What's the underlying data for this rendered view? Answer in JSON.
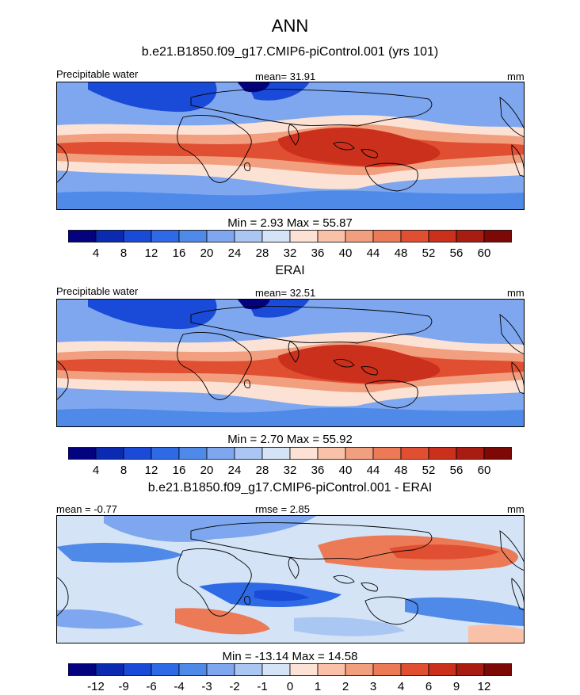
{
  "figure": {
    "title": "ANN",
    "colors": {
      "abs_palette": [
        "#03037f",
        "#0a2bb1",
        "#1a4ad8",
        "#2f6ae6",
        "#4f8ae9",
        "#7ea7ef",
        "#aac6f2",
        "#d4e4f6",
        "#fce2d4",
        "#f9c1a7",
        "#f29f7f",
        "#ec7a56",
        "#e04f32",
        "#ca301c",
        "#a81c12",
        "#7d0906"
      ],
      "diff_palette": [
        "#03037f",
        "#0a2bb1",
        "#1a4ad8",
        "#2f6ae6",
        "#4f8ae9",
        "#7ea7ef",
        "#aac6f2",
        "#d4e4f6",
        "#fce2d4",
        "#f9c1a7",
        "#f29f7f",
        "#ec7a56",
        "#e04f32",
        "#ca301c",
        "#a81c12",
        "#7d0906"
      ],
      "land": "#000000"
    }
  },
  "chart_data": [
    {
      "type": "heatmap",
      "title": "b.e21.B1850.f09_g17.CMIP6-piControl.001 (yrs 101)",
      "left_label": "Precipitable water",
      "center_label": "mean=  31.91",
      "right_label": "mm",
      "mean": 31.91,
      "min": 2.93,
      "max": 55.87,
      "stats_label": "Min =   2.93 Max =  55.87",
      "colorbar_levels": [
        "4",
        "8",
        "12",
        "16",
        "20",
        "24",
        "28",
        "32",
        "36",
        "40",
        "44",
        "48",
        "52",
        "56",
        "60"
      ]
    },
    {
      "type": "heatmap",
      "title": "ERAI",
      "left_label": "Precipitable water",
      "center_label": "mean=  32.51",
      "right_label": "mm",
      "mean": 32.51,
      "min": 2.7,
      "max": 55.92,
      "stats_label": "Min =   2.70 Max =  55.92",
      "colorbar_levels": [
        "4",
        "8",
        "12",
        "16",
        "20",
        "24",
        "28",
        "32",
        "36",
        "40",
        "44",
        "48",
        "52",
        "56",
        "60"
      ]
    },
    {
      "type": "heatmap",
      "title": "b.e21.B1850.f09_g17.CMIP6-piControl.001 - ERAI",
      "left_label": "mean =  -0.77",
      "center_label": "rmse =   2.85",
      "right_label": "mm",
      "mean": -0.77,
      "rmse": 2.85,
      "min": -13.14,
      "max": 14.58,
      "stats_label": "Min = -13.14 Max =  14.58",
      "colorbar_levels": [
        "-12",
        "-9",
        "-6",
        "-4",
        "-3",
        "-2",
        "-1",
        "0",
        "1",
        "2",
        "3",
        "4",
        "6",
        "9",
        "12"
      ]
    }
  ]
}
